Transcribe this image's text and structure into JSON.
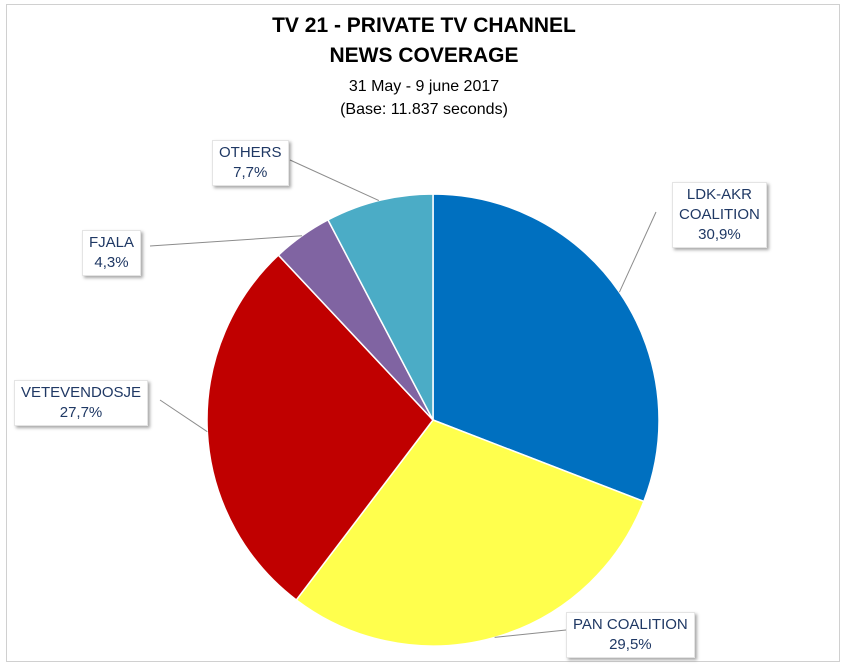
{
  "chart_data": {
    "type": "pie",
    "title_line1": "TV 21 - PRIVATE TV CHANNEL",
    "title_line2": "NEWS COVERAGE",
    "subtitle_line1": "31 May - 9 june 2017",
    "subtitle_line2": "(Base: 11.837 seconds)",
    "slices": [
      {
        "label_line1": "LDK-AKR",
        "label_line2": "COALITION",
        "value": 30.9,
        "value_text": "30,9%",
        "color": "#0070c0"
      },
      {
        "label_line1": "PAN COALITION",
        "label_line2": "",
        "value": 29.5,
        "value_text": "29,5%",
        "color": "#ffff4d"
      },
      {
        "label_line1": "VETEVENDOSJE",
        "label_line2": "",
        "value": 27.7,
        "value_text": "27,7%",
        "color": "#c00000"
      },
      {
        "label_line1": "FJALA",
        "label_line2": "",
        "value": 4.3,
        "value_text": "4,3%",
        "color": "#8064a2"
      },
      {
        "label_line1": "OTHERS",
        "label_line2": "",
        "value": 7.7,
        "value_text": "7,7%",
        "color": "#4bacc6"
      }
    ]
  }
}
